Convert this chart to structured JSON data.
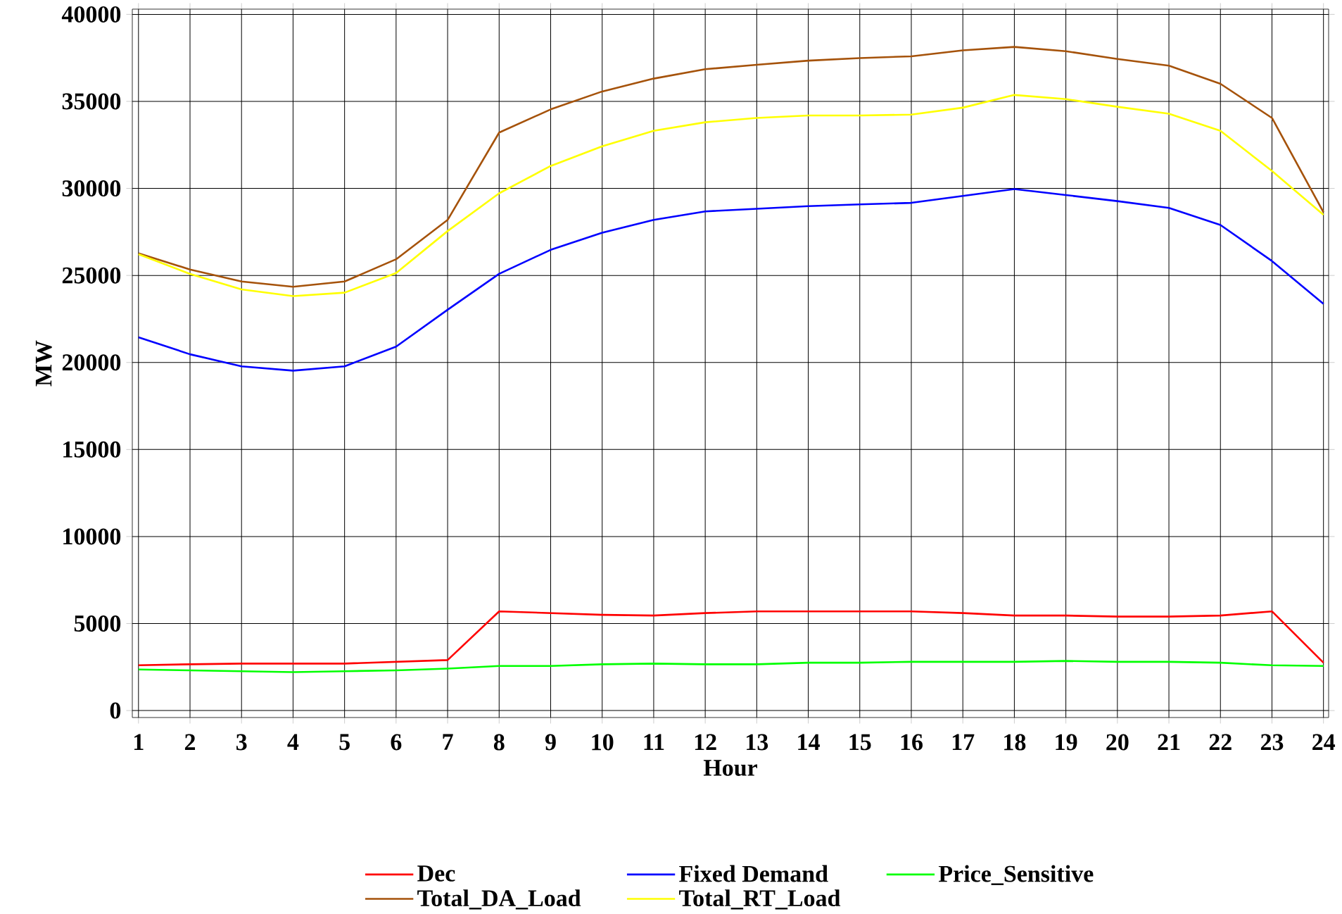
{
  "chart_data": {
    "type": "line",
    "xlabel": "Hour",
    "ylabel": "MW",
    "x": [
      1,
      2,
      3,
      4,
      5,
      6,
      7,
      8,
      9,
      10,
      11,
      12,
      13,
      14,
      15,
      16,
      17,
      18,
      19,
      20,
      21,
      22,
      23,
      24
    ],
    "series": [
      {
        "name": "Dec",
        "color": "#ff0000",
        "values": [
          2600,
          2660,
          2700,
          2700,
          2700,
          2800,
          2900,
          5700,
          5600,
          5500,
          5460,
          5600,
          5700,
          5700,
          5700,
          5700,
          5600,
          5460,
          5460,
          5400,
          5400,
          5460,
          5700,
          2750
        ]
      },
      {
        "name": "Fixed Demand",
        "color": "#0000ff",
        "values": [
          21450,
          20470,
          19780,
          19530,
          19780,
          20910,
          23030,
          25090,
          26470,
          27450,
          28190,
          28680,
          28830,
          28980,
          29080,
          29170,
          29570,
          29960,
          29620,
          29270,
          28880,
          27900,
          25830,
          23370
        ]
      },
      {
        "name": "Price_Sensitive",
        "color": "#00ff00",
        "values": [
          2360,
          2310,
          2260,
          2210,
          2260,
          2310,
          2410,
          2560,
          2560,
          2660,
          2700,
          2660,
          2660,
          2750,
          2750,
          2800,
          2800,
          2800,
          2850,
          2800,
          2800,
          2750,
          2600,
          2560
        ]
      },
      {
        "name": "Total_DA_Load",
        "color": "#a5520a",
        "values": [
          26270,
          25340,
          24650,
          24350,
          24650,
          25930,
          28190,
          33210,
          34540,
          35570,
          36310,
          36850,
          37100,
          37340,
          37490,
          37590,
          37930,
          38130,
          37880,
          37440,
          37050,
          36010,
          34050,
          28630
        ]
      },
      {
        "name": "Total_RT_Load",
        "color": "#ffff00",
        "values": [
          26220,
          25090,
          24200,
          23810,
          24010,
          25140,
          27550,
          29720,
          31290,
          32420,
          33310,
          33800,
          34050,
          34190,
          34190,
          34240,
          34640,
          35370,
          35130,
          34690,
          34290,
          33310,
          31000,
          28490
        ]
      }
    ],
    "xlim": [
      0.88,
      24.1
    ],
    "ylim": [
      -400,
      40300
    ],
    "xticks": [
      1,
      2,
      3,
      4,
      5,
      6,
      7,
      8,
      9,
      10,
      11,
      12,
      13,
      14,
      15,
      16,
      17,
      18,
      19,
      20,
      21,
      22,
      23,
      24
    ],
    "yticks": [
      0,
      5000,
      10000,
      15000,
      20000,
      25000,
      30000,
      35000,
      40000
    ],
    "grid": true,
    "legend": "bottom",
    "marker": "none",
    "line_style": "solid"
  }
}
